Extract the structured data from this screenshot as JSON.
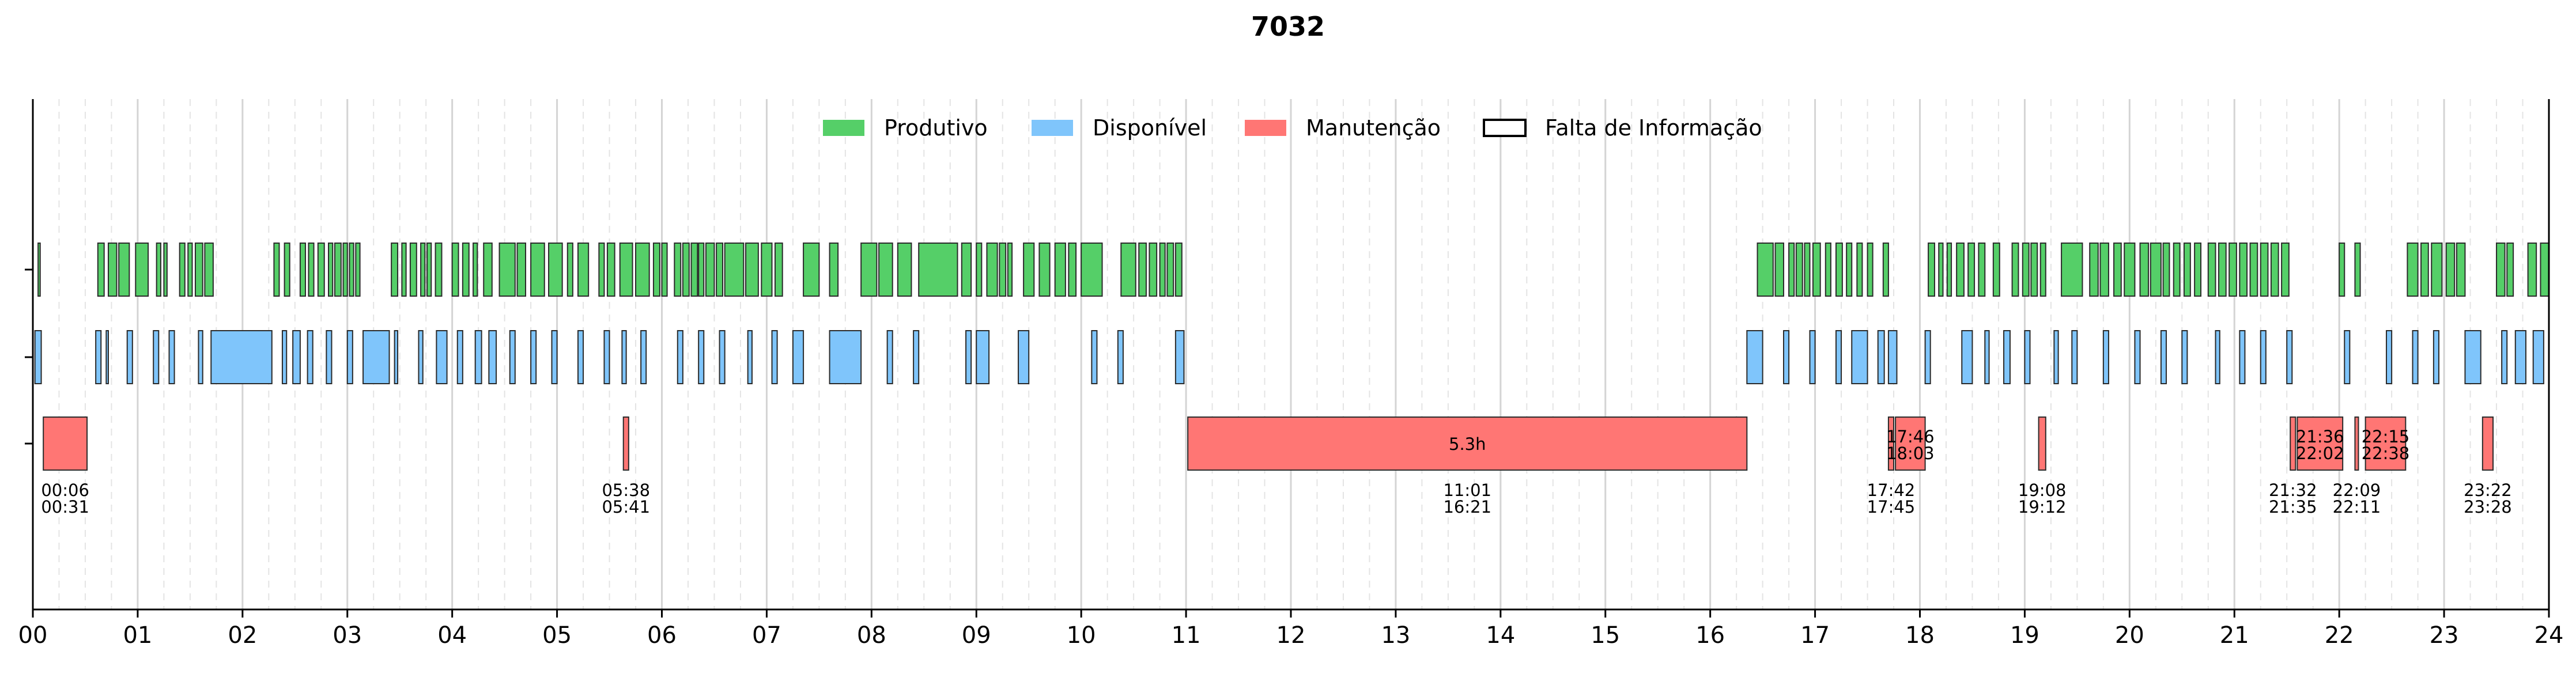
{
  "chart_data": {
    "type": "timeline",
    "title": "7032",
    "xlim": [
      0,
      24
    ],
    "x_ticks": [
      "00",
      "01",
      "02",
      "03",
      "04",
      "05",
      "06",
      "07",
      "08",
      "09",
      "10",
      "11",
      "12",
      "13",
      "14",
      "15",
      "16",
      "17",
      "18",
      "19",
      "20",
      "21",
      "22",
      "23",
      "24"
    ],
    "grid": "vertical, dashed at 15-minute intervals",
    "legend_position": "top-center",
    "legend": [
      {
        "label": "Produtivo",
        "color": "#55cf68"
      },
      {
        "label": "Disponível",
        "color": "#7fc5fb"
      },
      {
        "label": "Manutenção",
        "color": "#ff7674"
      },
      {
        "label": "Falta de Informação",
        "color": "#ffffff"
      }
    ],
    "rows": [
      "Produtivo",
      "Disponível",
      "Manutenção"
    ],
    "series": [
      {
        "name": "Produtivo",
        "color": "#55cf68",
        "intervals": [
          [
            0.05,
            0.07
          ],
          [
            0.62,
            0.68
          ],
          [
            0.72,
            0.8
          ],
          [
            0.82,
            0.92
          ],
          [
            0.98,
            1.1
          ],
          [
            1.18,
            1.22
          ],
          [
            1.25,
            1.28
          ],
          [
            1.4,
            1.45
          ],
          [
            1.48,
            1.52
          ],
          [
            1.55,
            1.62
          ],
          [
            1.64,
            1.72
          ],
          [
            2.3,
            2.35
          ],
          [
            2.4,
            2.45
          ],
          [
            2.55,
            2.6
          ],
          [
            2.63,
            2.68
          ],
          [
            2.72,
            2.78
          ],
          [
            2.82,
            2.86
          ],
          [
            2.88,
            2.94
          ],
          [
            2.96,
            3.0
          ],
          [
            3.02,
            3.06
          ],
          [
            3.08,
            3.12
          ],
          [
            3.42,
            3.48
          ],
          [
            3.52,
            3.56
          ],
          [
            3.6,
            3.66
          ],
          [
            3.7,
            3.74
          ],
          [
            3.76,
            3.8
          ],
          [
            3.84,
            3.9
          ],
          [
            4.0,
            4.06
          ],
          [
            4.1,
            4.16
          ],
          [
            4.2,
            4.24
          ],
          [
            4.3,
            4.38
          ],
          [
            4.45,
            4.6
          ],
          [
            4.62,
            4.7
          ],
          [
            4.75,
            4.88
          ],
          [
            4.92,
            5.05
          ],
          [
            5.1,
            5.15
          ],
          [
            5.2,
            5.3
          ],
          [
            5.4,
            5.45
          ],
          [
            5.48,
            5.55
          ],
          [
            5.6,
            5.72
          ],
          [
            5.75,
            5.88
          ],
          [
            5.92,
            5.98
          ],
          [
            6.0,
            6.05
          ],
          [
            6.12,
            6.18
          ],
          [
            6.2,
            6.26
          ],
          [
            6.28,
            6.34
          ],
          [
            6.35,
            6.4
          ],
          [
            6.42,
            6.5
          ],
          [
            6.52,
            6.58
          ],
          [
            6.6,
            6.78
          ],
          [
            6.8,
            6.92
          ],
          [
            6.95,
            7.05
          ],
          [
            7.08,
            7.15
          ],
          [
            7.35,
            7.5
          ],
          [
            7.6,
            7.68
          ],
          [
            7.9,
            8.05
          ],
          [
            8.07,
            8.2
          ],
          [
            8.25,
            8.38
          ],
          [
            8.45,
            8.82
          ],
          [
            8.86,
            8.95
          ],
          [
            9.0,
            9.05
          ],
          [
            9.1,
            9.2
          ],
          [
            9.22,
            9.28
          ],
          [
            9.3,
            9.34
          ],
          [
            9.45,
            9.55
          ],
          [
            9.6,
            9.7
          ],
          [
            9.75,
            9.85
          ],
          [
            9.88,
            9.95
          ],
          [
            10.0,
            10.2
          ],
          [
            10.38,
            10.52
          ],
          [
            10.55,
            10.62
          ],
          [
            10.65,
            10.72
          ],
          [
            10.75,
            10.8
          ],
          [
            10.82,
            10.88
          ],
          [
            10.9,
            10.96
          ],
          [
            16.45,
            16.6
          ],
          [
            16.62,
            16.7
          ],
          [
            16.75,
            16.8
          ],
          [
            16.82,
            16.88
          ],
          [
            16.9,
            16.95
          ],
          [
            16.98,
            17.05
          ],
          [
            17.1,
            17.15
          ],
          [
            17.2,
            17.26
          ],
          [
            17.3,
            17.35
          ],
          [
            17.4,
            17.45
          ],
          [
            17.5,
            17.55
          ],
          [
            17.65,
            17.7
          ],
          [
            18.08,
            18.14
          ],
          [
            18.18,
            18.22
          ],
          [
            18.26,
            18.3
          ],
          [
            18.35,
            18.42
          ],
          [
            18.46,
            18.52
          ],
          [
            18.56,
            18.62
          ],
          [
            18.7,
            18.76
          ],
          [
            18.88,
            18.94
          ],
          [
            18.98,
            19.04
          ],
          [
            19.06,
            19.12
          ],
          [
            19.15,
            19.2
          ],
          [
            19.35,
            19.55
          ],
          [
            19.62,
            19.7
          ],
          [
            19.72,
            19.8
          ],
          [
            19.85,
            19.92
          ],
          [
            19.95,
            20.05
          ],
          [
            20.1,
            20.18
          ],
          [
            20.2,
            20.3
          ],
          [
            20.32,
            20.38
          ],
          [
            20.42,
            20.48
          ],
          [
            20.52,
            20.58
          ],
          [
            20.62,
            20.68
          ],
          [
            20.75,
            20.82
          ],
          [
            20.85,
            20.92
          ],
          [
            20.95,
            21.02
          ],
          [
            21.05,
            21.12
          ],
          [
            21.15,
            21.22
          ],
          [
            21.25,
            21.32
          ],
          [
            21.35,
            21.42
          ],
          [
            21.45,
            21.52
          ],
          [
            22.0,
            22.05
          ],
          [
            22.15,
            22.2
          ],
          [
            22.65,
            22.75
          ],
          [
            22.78,
            22.85
          ],
          [
            22.88,
            22.98
          ],
          [
            23.02,
            23.1
          ],
          [
            23.12,
            23.2
          ],
          [
            23.5,
            23.58
          ],
          [
            23.6,
            23.66
          ],
          [
            23.8,
            23.88
          ],
          [
            23.92,
            24.0
          ]
        ]
      },
      {
        "name": "Disponível",
        "color": "#7fc5fb",
        "intervals": [
          [
            0.02,
            0.08
          ],
          [
            0.6,
            0.65
          ],
          [
            0.7,
            0.72
          ],
          [
            0.9,
            0.95
          ],
          [
            1.15,
            1.2
          ],
          [
            1.3,
            1.35
          ],
          [
            1.58,
            1.62
          ],
          [
            1.7,
            2.28
          ],
          [
            2.38,
            2.42
          ],
          [
            2.48,
            2.55
          ],
          [
            2.62,
            2.67
          ],
          [
            2.8,
            2.85
          ],
          [
            3.0,
            3.05
          ],
          [
            3.15,
            3.4
          ],
          [
            3.45,
            3.48
          ],
          [
            3.68,
            3.72
          ],
          [
            3.85,
            3.95
          ],
          [
            4.05,
            4.1
          ],
          [
            4.22,
            4.28
          ],
          [
            4.35,
            4.42
          ],
          [
            4.55,
            4.6
          ],
          [
            4.75,
            4.8
          ],
          [
            4.95,
            5.0
          ],
          [
            5.2,
            5.25
          ],
          [
            5.45,
            5.5
          ],
          [
            5.62,
            5.66
          ],
          [
            5.8,
            5.85
          ],
          [
            6.15,
            6.2
          ],
          [
            6.35,
            6.4
          ],
          [
            6.55,
            6.6
          ],
          [
            6.82,
            6.86
          ],
          [
            7.05,
            7.1
          ],
          [
            7.25,
            7.35
          ],
          [
            7.6,
            7.9
          ],
          [
            8.15,
            8.2
          ],
          [
            8.4,
            8.45
          ],
          [
            8.9,
            8.95
          ],
          [
            9.0,
            9.12
          ],
          [
            9.4,
            9.5
          ],
          [
            10.1,
            10.15
          ],
          [
            10.35,
            10.4
          ],
          [
            10.9,
            10.98
          ],
          [
            16.35,
            16.5
          ],
          [
            16.7,
            16.75
          ],
          [
            16.95,
            17.0
          ],
          [
            17.2,
            17.25
          ],
          [
            17.35,
            17.5
          ],
          [
            17.6,
            17.66
          ],
          [
            17.7,
            17.78
          ],
          [
            18.05,
            18.1
          ],
          [
            18.4,
            18.5
          ],
          [
            18.62,
            18.66
          ],
          [
            18.8,
            18.86
          ],
          [
            19.0,
            19.05
          ],
          [
            19.28,
            19.32
          ],
          [
            19.45,
            19.5
          ],
          [
            19.75,
            19.8
          ],
          [
            20.05,
            20.1
          ],
          [
            20.3,
            20.35
          ],
          [
            20.5,
            20.55
          ],
          [
            20.82,
            20.86
          ],
          [
            21.05,
            21.1
          ],
          [
            21.25,
            21.3
          ],
          [
            21.5,
            21.55
          ],
          [
            22.05,
            22.1
          ],
          [
            22.45,
            22.5
          ],
          [
            22.7,
            22.75
          ],
          [
            22.9,
            22.95
          ],
          [
            23.2,
            23.35
          ],
          [
            23.55,
            23.6
          ],
          [
            23.68,
            23.78
          ],
          [
            23.85,
            23.95
          ]
        ]
      },
      {
        "name": "Manutenção",
        "color": "#ff7674",
        "intervals": [
          {
            "start": 0.1,
            "end": 0.517,
            "label_start": "00:06",
            "label_end": "00:31"
          },
          {
            "start": 5.633,
            "end": 5.683,
            "label_start": "05:38",
            "label_end": "05:41"
          },
          {
            "start": 11.017,
            "end": 16.35,
            "label_start": "11:01",
            "label_end": "16:21",
            "duration_label": "5.3h"
          },
          {
            "start": 17.7,
            "end": 17.75,
            "label_start": "17:42",
            "label_end": "17:45"
          },
          {
            "start": 17.767,
            "end": 18.05,
            "label_start": "17:46",
            "label_end": "18:03"
          },
          {
            "start": 19.133,
            "end": 19.2,
            "label_start": "19:08",
            "label_end": "19:12"
          },
          {
            "start": 21.533,
            "end": 21.583,
            "label_start": "21:32",
            "label_end": "21:35"
          },
          {
            "start": 21.6,
            "end": 22.033,
            "label_start": "21:36",
            "label_end": "22:02"
          },
          {
            "start": 22.15,
            "end": 22.183,
            "label_start": "22:09",
            "label_end": "22:11"
          },
          {
            "start": 22.25,
            "end": 22.633,
            "label_start": "22:15",
            "label_end": "22:38"
          },
          {
            "start": 23.367,
            "end": 23.467,
            "label_start": "23:22",
            "label_end": "23:28"
          }
        ]
      }
    ]
  }
}
